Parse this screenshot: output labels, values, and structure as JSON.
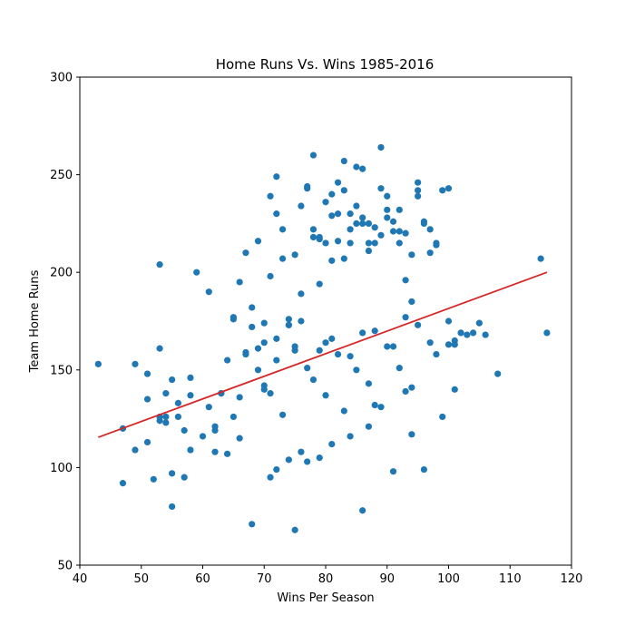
{
  "chart_data": {
    "type": "scatter",
    "title": "Home Runs Vs. Wins 1985-2016",
    "xlabel": "Wins Per Season",
    "ylabel": "Team Home Runs",
    "xlim": [
      40,
      120
    ],
    "ylim": [
      50,
      300
    ],
    "xticks": [
      40,
      50,
      60,
      70,
      80,
      90,
      100,
      110,
      120
    ],
    "yticks": [
      50,
      100,
      150,
      200,
      250,
      300
    ],
    "grid": false,
    "colors": {
      "points": "#1f77b4",
      "trendline": "#d62728"
    },
    "series": [
      {
        "kind": "points",
        "x": [
          43,
          47,
          47,
          49,
          49,
          51,
          51,
          51,
          52,
          53,
          53,
          53,
          53,
          54,
          54,
          55,
          55,
          55,
          56,
          56,
          57,
          57,
          58,
          58,
          59,
          60,
          61,
          61,
          62,
          62,
          63,
          63,
          64,
          65,
          65,
          66,
          66,
          67,
          67,
          68,
          68,
          69,
          69,
          70,
          70,
          70,
          71,
          71,
          72,
          72,
          72,
          73,
          73,
          74,
          74,
          74,
          75,
          75,
          76,
          76,
          76,
          77,
          77,
          78,
          78,
          78,
          79,
          79,
          79,
          80,
          80,
          80,
          81,
          81,
          81,
          82,
          82,
          82,
          83,
          83,
          83,
          84,
          84,
          84,
          85,
          85,
          85,
          86,
          86,
          86,
          87,
          87,
          87,
          88,
          88,
          89,
          89,
          89,
          90,
          90,
          90,
          91,
          91,
          92,
          92,
          92,
          93,
          93,
          94,
          94,
          95,
          95,
          95,
          96,
          96,
          97,
          97,
          98,
          98,
          99,
          100,
          100,
          101,
          101,
          102,
          103,
          104,
          105,
          106,
          108,
          115,
          116,
          68,
          72,
          75,
          77,
          81,
          86,
          91,
          96,
          64,
          74,
          79,
          84,
          89,
          94,
          99,
          71,
          76,
          83,
          88,
          93,
          66,
          73,
          80,
          87,
          94,
          101,
          70,
          78,
          85,
          92,
          69,
          82,
          90,
          97,
          67,
          75,
          81,
          88,
          95,
          72,
          79,
          86,
          93,
          100,
          77,
          84,
          91,
          98,
          65,
          71,
          87,
          62,
          58,
          54
        ],
        "y": [
          153,
          120,
          92,
          109,
          153,
          135,
          113,
          148,
          94,
          124,
          161,
          126,
          204,
          138,
          123,
          80,
          145,
          97,
          133,
          126,
          119,
          95,
          137,
          146,
          200,
          116,
          131,
          190,
          108,
          121,
          138,
          138,
          155,
          176,
          177,
          136,
          195,
          159,
          210,
          172,
          182,
          150,
          216,
          164,
          142,
          174,
          239,
          198,
          249,
          230,
          166,
          207,
          222,
          173,
          173,
          176,
          209,
          160,
          175,
          234,
          189,
          243,
          244,
          222,
          260,
          218,
          194,
          217,
          218,
          215,
          164,
          236,
          240,
          206,
          229,
          216,
          246,
          230,
          207,
          257,
          242,
          230,
          222,
          215,
          234,
          254,
          225,
          225,
          253,
          228,
          225,
          215,
          211,
          223,
          215,
          243,
          264,
          219,
          239,
          228,
          232,
          226,
          221,
          215,
          221,
          232,
          196,
          220,
          209,
          185,
          242,
          239,
          246,
          226,
          225,
          222,
          210,
          214,
          215,
          242,
          243,
          163,
          165,
          163,
          169,
          168,
          169,
          174,
          168,
          148,
          207,
          169,
          71,
          99,
          68,
          103,
          112,
          78,
          98,
          99,
          107,
          104,
          105,
          116,
          131,
          117,
          126,
          95,
          108,
          129,
          132,
          139,
          115,
          127,
          137,
          143,
          141,
          140,
          140,
          145,
          150,
          151,
          161,
          158,
          162,
          164,
          158,
          162,
          166,
          170,
          173,
          155,
          160,
          169,
          177,
          175,
          151,
          157,
          162,
          158,
          126,
          138,
          121,
          119,
          109,
          126
        ]
      },
      {
        "kind": "trendline",
        "x": [
          43,
          116
        ],
        "y": [
          115.5,
          200
        ]
      }
    ]
  }
}
